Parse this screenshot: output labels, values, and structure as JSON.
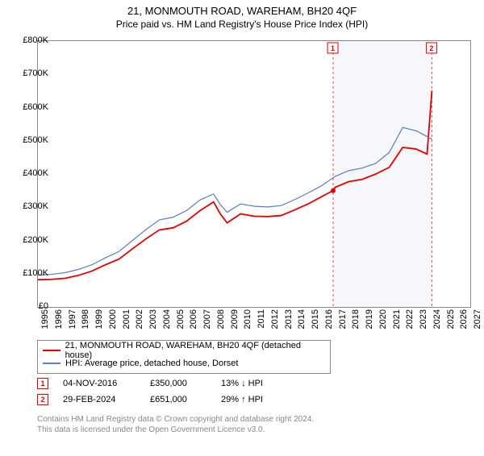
{
  "title": "21, MONMOUTH ROAD, WAREHAM, BH20 4QF",
  "subtitle": "Price paid vs. HM Land Registry's House Price Index (HPI)",
  "chart": {
    "type": "line",
    "x_min": 1995,
    "x_max": 2027,
    "y_min": 0,
    "y_max": 800000,
    "y_ticks": [
      0,
      100000,
      200000,
      300000,
      400000,
      500000,
      600000,
      700000,
      800000
    ],
    "y_tick_labels": [
      "£0",
      "£100K",
      "£200K",
      "£300K",
      "£400K",
      "£500K",
      "£600K",
      "£700K",
      "£800K"
    ],
    "x_ticks": [
      1995,
      1996,
      1997,
      1998,
      1999,
      2000,
      2001,
      2002,
      2003,
      2004,
      2005,
      2006,
      2007,
      2008,
      2009,
      2010,
      2011,
      2012,
      2013,
      2014,
      2015,
      2016,
      2017,
      2018,
      2019,
      2020,
      2021,
      2022,
      2023,
      2024,
      2025,
      2026,
      2027
    ],
    "grid_color": "#888888",
    "background_color": "#ffffff",
    "shade_start": 2016.85,
    "shade_end": 2024.16,
    "shade_color": "rgba(120,140,200,0.07)",
    "series": [
      {
        "name": "property",
        "label": "21, MONMOUTH ROAD, WAREHAM, BH20 4QF (detached house)",
        "color": "#e00000",
        "width": 1.8,
        "points": [
          [
            1995,
            82000
          ],
          [
            1996,
            83000
          ],
          [
            1997,
            86000
          ],
          [
            1998,
            95000
          ],
          [
            1999,
            108000
          ],
          [
            2000,
            127000
          ],
          [
            2001,
            144000
          ],
          [
            2002,
            175000
          ],
          [
            2003,
            205000
          ],
          [
            2004,
            232000
          ],
          [
            2005,
            238000
          ],
          [
            2006,
            258000
          ],
          [
            2007,
            290000
          ],
          [
            2008,
            316000
          ],
          [
            2008.5,
            280000
          ],
          [
            2009,
            253000
          ],
          [
            2010,
            280000
          ],
          [
            2011,
            273000
          ],
          [
            2012,
            272000
          ],
          [
            2013,
            275000
          ],
          [
            2014,
            292000
          ],
          [
            2015,
            310000
          ],
          [
            2016,
            332000
          ],
          [
            2016.85,
            350000
          ],
          [
            2017,
            360000
          ],
          [
            2018,
            377000
          ],
          [
            2019,
            384000
          ],
          [
            2020,
            400000
          ],
          [
            2021,
            420000
          ],
          [
            2022,
            480000
          ],
          [
            2023,
            475000
          ],
          [
            2023.8,
            460000
          ],
          [
            2024.16,
            651000
          ]
        ],
        "marker_at": [
          2016.85,
          350000
        ]
      },
      {
        "name": "hpi",
        "label": "HPI: Average price, detached house, Dorset",
        "color": "#5b7dbf",
        "width": 1.2,
        "points": [
          [
            1995,
            96000
          ],
          [
            1996,
            98000
          ],
          [
            1997,
            103000
          ],
          [
            1998,
            113000
          ],
          [
            1999,
            127000
          ],
          [
            2000,
            148000
          ],
          [
            2001,
            167000
          ],
          [
            2002,
            200000
          ],
          [
            2003,
            233000
          ],
          [
            2004,
            262000
          ],
          [
            2005,
            270000
          ],
          [
            2006,
            290000
          ],
          [
            2007,
            322000
          ],
          [
            2008,
            340000
          ],
          [
            2008.5,
            308000
          ],
          [
            2009,
            285000
          ],
          [
            2010,
            310000
          ],
          [
            2011,
            303000
          ],
          [
            2012,
            301000
          ],
          [
            2013,
            305000
          ],
          [
            2014,
            323000
          ],
          [
            2015,
            343000
          ],
          [
            2016,
            365000
          ],
          [
            2017,
            393000
          ],
          [
            2018,
            410000
          ],
          [
            2019,
            418000
          ],
          [
            2020,
            432000
          ],
          [
            2021,
            465000
          ],
          [
            2022,
            540000
          ],
          [
            2023,
            530000
          ],
          [
            2024.16,
            505000
          ]
        ]
      }
    ],
    "sale_markers": [
      {
        "n": "1",
        "x": 2016.85
      },
      {
        "n": "2",
        "x": 2024.16
      }
    ]
  },
  "legend": {
    "items": [
      {
        "color": "#e00000",
        "label": "21, MONMOUTH ROAD, WAREHAM, BH20 4QF (detached house)"
      },
      {
        "color": "#5b7dbf",
        "label": "HPI: Average price, detached house, Dorset"
      }
    ]
  },
  "sales": [
    {
      "n": "1",
      "date": "04-NOV-2016",
      "price": "£350,000",
      "diff": "13% ↓ HPI"
    },
    {
      "n": "2",
      "date": "29-FEB-2024",
      "price": "£651,000",
      "diff": "29% ↑ HPI"
    }
  ],
  "footer": {
    "line1": "Contains HM Land Registry data © Crown copyright and database right 2024.",
    "line2": "This data is licensed under the Open Government Licence v3.0."
  }
}
